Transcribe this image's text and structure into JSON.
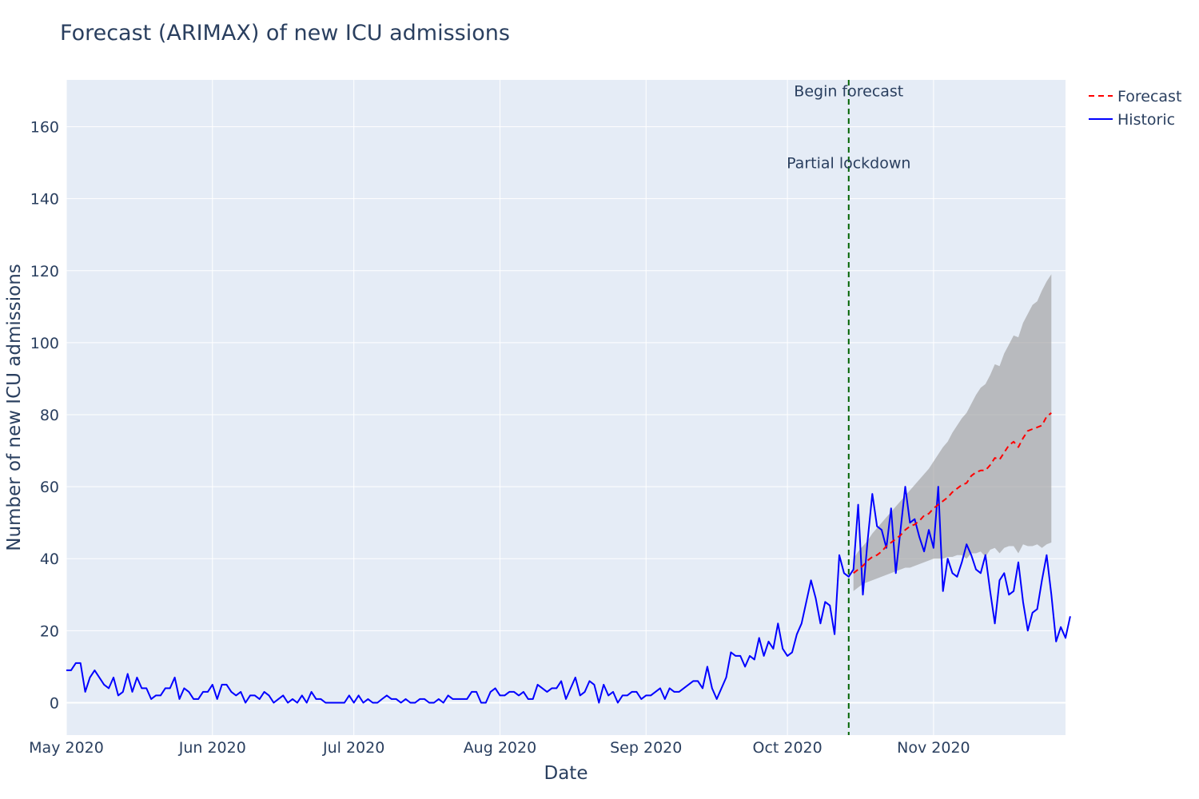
{
  "chart_data": {
    "type": "line",
    "title": "Forecast (ARIMAX) of new ICU admissions",
    "xlabel": "Date",
    "ylabel": "Number of new ICU admissions",
    "x_range": [
      "2020-05-01",
      "2020-11-29"
    ],
    "ylim": [
      -9,
      173
    ],
    "grid": true,
    "legend_position": "top-right (outside plot)",
    "x_ticks": [
      {
        "date": "2020-05-01",
        "label": "May 2020"
      },
      {
        "date": "2020-06-01",
        "label": "Jun 2020"
      },
      {
        "date": "2020-07-01",
        "label": "Jul 2020"
      },
      {
        "date": "2020-08-01",
        "label": "Aug 2020"
      },
      {
        "date": "2020-09-01",
        "label": "Sep 2020"
      },
      {
        "date": "2020-10-01",
        "label": "Oct 2020"
      },
      {
        "date": "2020-11-01",
        "label": "Nov 2020"
      }
    ],
    "y_ticks": [
      0,
      20,
      40,
      60,
      80,
      100,
      120,
      140,
      160
    ],
    "annotations": [
      {
        "date": "2020-10-14",
        "text": "Begin forecast",
        "y": 170,
        "color": "#006400"
      },
      {
        "date": "2020-10-14",
        "text": "Partial lockdown",
        "y": 150
      }
    ],
    "series": [
      {
        "name": "Historic",
        "color": "#0000ff",
        "dash": "solid",
        "start_date": "2020-05-01",
        "values": [
          9,
          9,
          11,
          11,
          3,
          7,
          9,
          7,
          5,
          4,
          7,
          2,
          3,
          8,
          3,
          7,
          4,
          4,
          1,
          2,
          2,
          4,
          4,
          7,
          1,
          4,
          3,
          1,
          1,
          3,
          3,
          5,
          1,
          5,
          5,
          3,
          2,
          3,
          0,
          2,
          2,
          1,
          3,
          2,
          0,
          1,
          2,
          0,
          1,
          0,
          2,
          0,
          3,
          1,
          1,
          0,
          0,
          0,
          0,
          0,
          2,
          0,
          2,
          0,
          1,
          0,
          0,
          1,
          2,
          1,
          1,
          0,
          1,
          0,
          0,
          1,
          1,
          0,
          0,
          1,
          0,
          2,
          1,
          1,
          1,
          1,
          3,
          3,
          0,
          0,
          3,
          4,
          2,
          2,
          3,
          3,
          2,
          3,
          1,
          1,
          5,
          4,
          3,
          4,
          4,
          6,
          1,
          4,
          7,
          2,
          3,
          6,
          5,
          0,
          5,
          2,
          3,
          0,
          2,
          2,
          3,
          3,
          1,
          2,
          2,
          3,
          4,
          1,
          4,
          3,
          3,
          4,
          5,
          6,
          6,
          4,
          10,
          4,
          1,
          4,
          7,
          14,
          13,
          13,
          10,
          13,
          12,
          18,
          13,
          17,
          15,
          22,
          15,
          13,
          14,
          19,
          22,
          28,
          34,
          29,
          22,
          28,
          27,
          19,
          41,
          36,
          35,
          37,
          55,
          30,
          45,
          58,
          49,
          48,
          43,
          54,
          36,
          48,
          60,
          50,
          51,
          46,
          42,
          48,
          43,
          60,
          31,
          40,
          36,
          35,
          39,
          44,
          41,
          37,
          36,
          41,
          31,
          22,
          34,
          36,
          30,
          31,
          39,
          28,
          20,
          25,
          26,
          34,
          41,
          30,
          17,
          21,
          18,
          24
        ]
      },
      {
        "name": "Forecast",
        "color": "#ff0000",
        "dash": "dash",
        "start_date": "2020-10-15",
        "values": [
          36,
          37,
          38,
          39.5,
          40.5,
          41,
          42,
          43.5,
          44.5,
          45.5,
          46.5,
          48,
          49,
          49.5,
          50.5,
          52,
          52.5,
          54,
          55,
          56,
          57,
          58.5,
          59.5,
          60.5,
          61,
          63,
          64,
          64.5,
          64.5,
          66,
          68,
          67.5,
          69.5,
          71.5,
          72.5,
          71,
          73.5,
          75.5,
          76,
          76.5,
          77,
          79.5,
          80.5
        ]
      }
    ],
    "confidence_band": {
      "color": "rgba(160,160,160,0.65)",
      "start_date": "2020-10-15",
      "lower": [
        31,
        32,
        33,
        33.5,
        34,
        34.5,
        35,
        35.5,
        36,
        36.5,
        37,
        37.5,
        37.5,
        38,
        38.5,
        39,
        39.5,
        40,
        40,
        40,
        40.5,
        40.5,
        41,
        41,
        40,
        41.5,
        41.5,
        42,
        40.5,
        42.5,
        43,
        41.5,
        43,
        43.5,
        43.5,
        41.5,
        44,
        43.5,
        43.5,
        44,
        43,
        44,
        44.5
      ],
      "upper": [
        40,
        42,
        43.5,
        45,
        47,
        48.5,
        50,
        51.5,
        53,
        54.5,
        56,
        57.5,
        59,
        60.5,
        62,
        63.5,
        65,
        67,
        69,
        71,
        72.5,
        75,
        77,
        79,
        80.5,
        83,
        85.5,
        87.5,
        88.5,
        91,
        94,
        93.5,
        97,
        99.5,
        102,
        101.5,
        105.5,
        108,
        110.5,
        111.5,
        114.5,
        117,
        119
      ]
    }
  }
}
